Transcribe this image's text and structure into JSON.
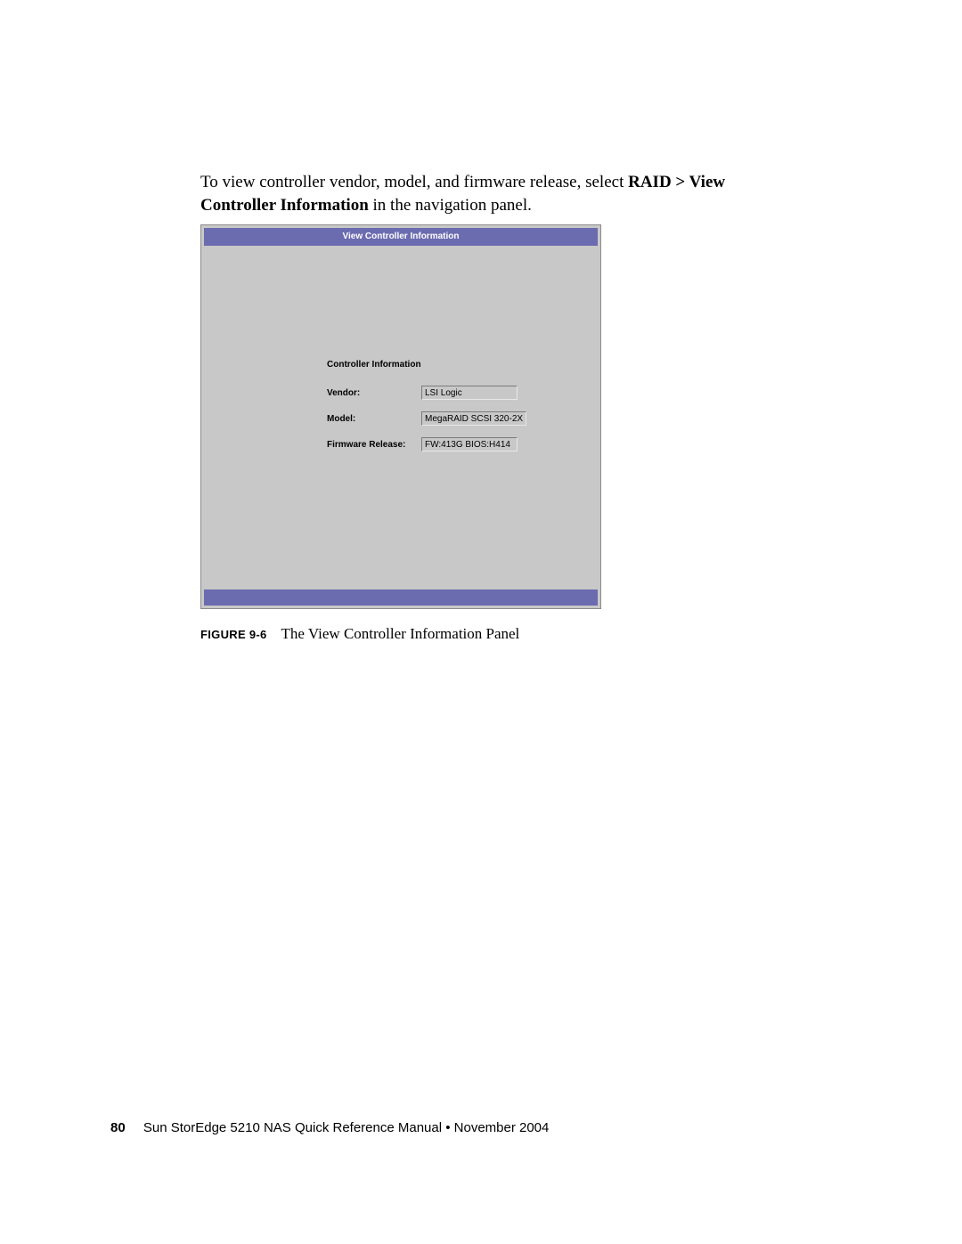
{
  "body_text": {
    "pre": "To view controller vendor, model, and firmware release, select ",
    "bold1": "RAID > View Controller Information",
    "post": " in the navigation panel."
  },
  "panel": {
    "header": "View Controller Information",
    "section_title": "Controller Information",
    "header_bg": "#6b6bb0",
    "body_bg": "#c8c8c8",
    "rows": [
      {
        "label": "Vendor:",
        "value": "LSI Logic"
      },
      {
        "label": "Model:",
        "value": "MegaRAID SCSI 320-2X"
      },
      {
        "label": "Firmware Release:",
        "value": "FW:413G BIOS:H414"
      }
    ]
  },
  "caption": {
    "label": "FIGURE 9-6",
    "text": "The View Controller Information Panel"
  },
  "footer": {
    "page_number": "80",
    "text": "Sun StorEdge 5210 NAS Quick Reference Manual  •  November 2004"
  }
}
